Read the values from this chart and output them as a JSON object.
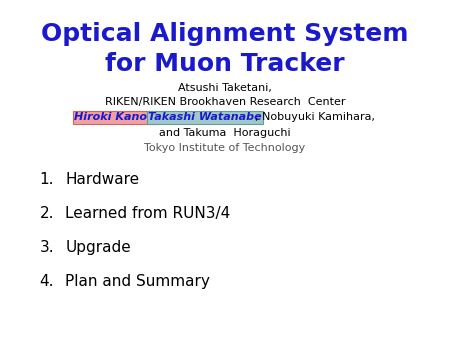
{
  "title_line1": "Optical Alignment System",
  "title_line2": "for Muon Tracker",
  "title_color": "#1a1acc",
  "title_fontsize": 18,
  "author_line": "Atsushi Taketani,",
  "affil_line": "RIKEN/RIKEN Brookhaven Research  Center",
  "name1": "Hiroki Kanou",
  "name1_bg": "#f0a0a0",
  "name1_ec": "#cc6666",
  "name2": "Takashi Watanabe",
  "name2_bg": "#a0c8c8",
  "name2_ec": "#669999",
  "name_color": "#1a1acc",
  "rest_names": ", Nobuyuki Kamihara,",
  "rest_names2": "and Takuma  Horaguchi",
  "institute": "Tokyo Institute of Technology",
  "institute_color": "#555555",
  "items": [
    "Hardware",
    "Learned from RUN3/4",
    "Upgrade",
    "Plan and Summary"
  ],
  "item_fontsize": 11,
  "sub_fontsize": 8,
  "bg_color": "#ffffff",
  "fig_width": 4.5,
  "fig_height": 3.38,
  "dpi": 100
}
